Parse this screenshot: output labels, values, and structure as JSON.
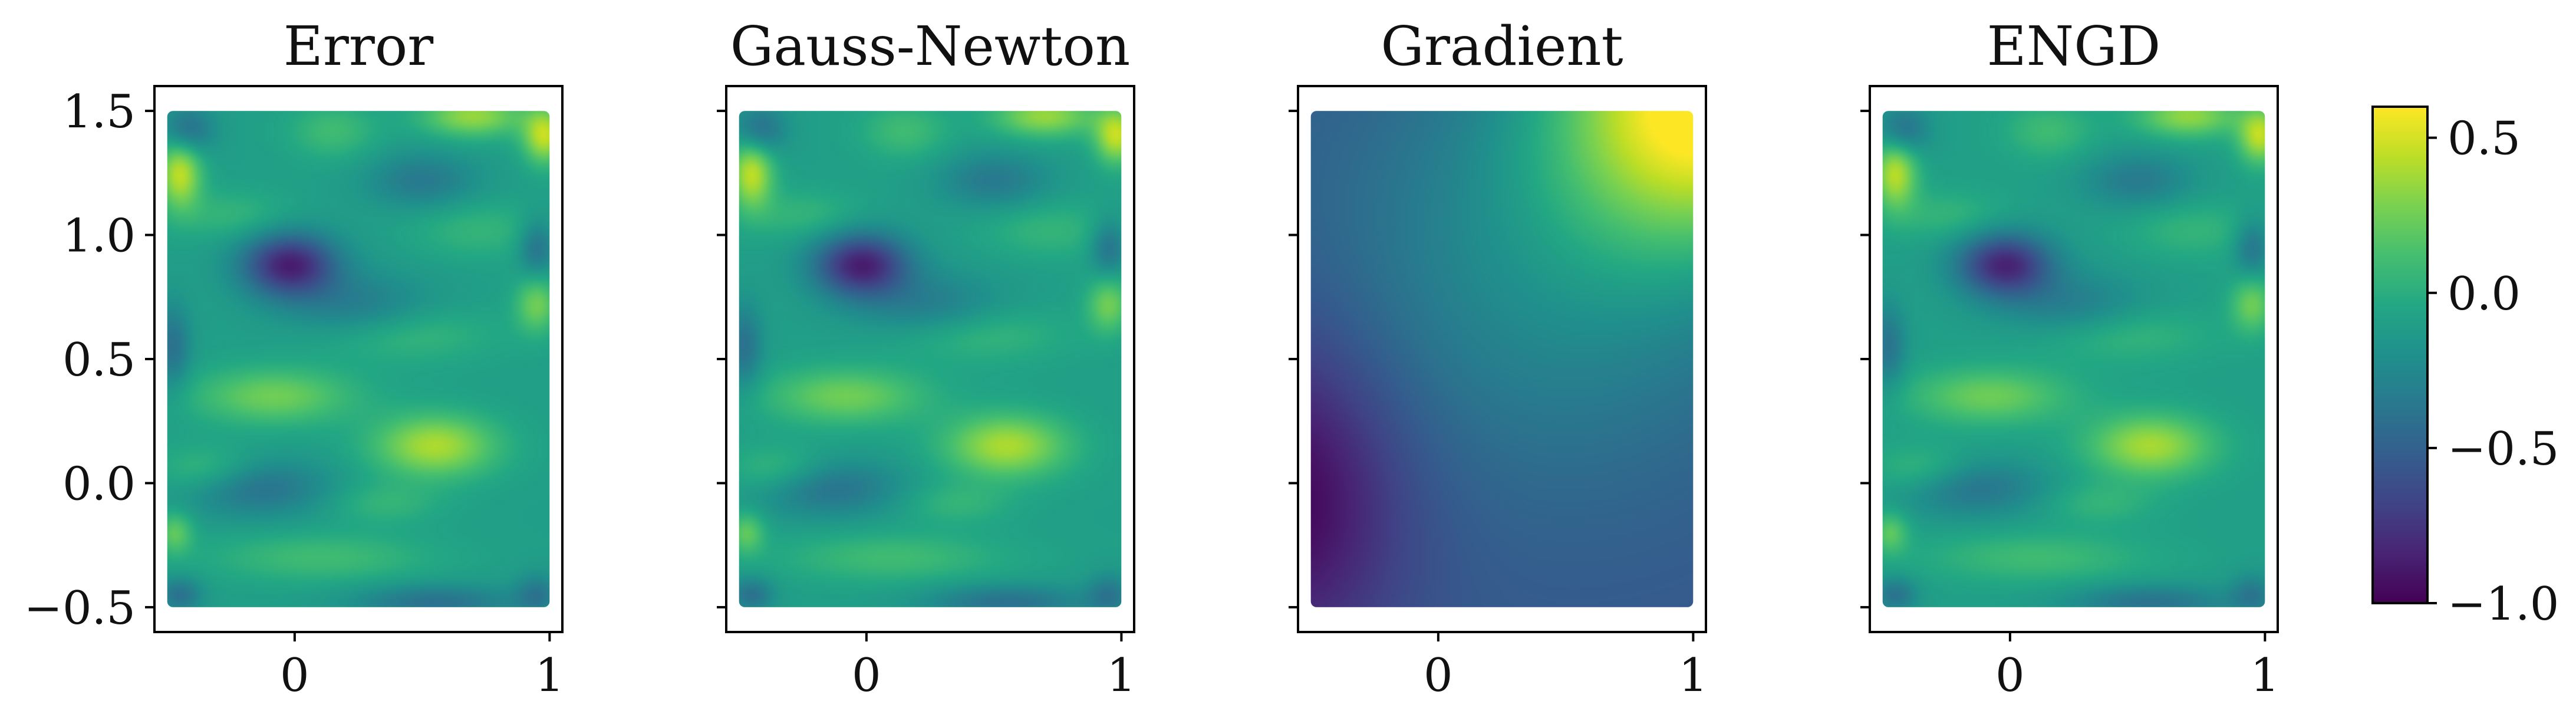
{
  "chart_data": {
    "type": "heatmap",
    "xlim": [
      -0.55,
      1.05
    ],
    "ylim": [
      -0.6,
      1.6
    ],
    "domain_x": [
      -0.5,
      1.0
    ],
    "domain_y": [
      -0.5,
      1.5
    ],
    "x_ticks": [
      {
        "value": 0,
        "label": "0"
      },
      {
        "value": 1,
        "label": "1"
      }
    ],
    "y_ticks": [
      {
        "value": 1.5,
        "label": "1.5"
      },
      {
        "value": 1.0,
        "label": "1.0"
      },
      {
        "value": 0.5,
        "label": "0.5"
      },
      {
        "value": 0.0,
        "label": "0.0"
      },
      {
        "value": -0.5,
        "label": "−0.5"
      }
    ],
    "colorbar": {
      "colormap": "viridis",
      "range": [
        -1.0,
        0.6
      ],
      "ticks": [
        {
          "value": 0.5,
          "label": "0.5"
        },
        {
          "value": 0.0,
          "label": "0.0"
        },
        {
          "value": -0.5,
          "label": "−0.5"
        },
        {
          "value": -1.0,
          "label": "−1.0"
        }
      ]
    },
    "panels": [
      {
        "title": "Error",
        "field": "error",
        "show_y_labels": true
      },
      {
        "title": "Gauss-Newton",
        "field": "gauss_newton",
        "show_y_labels": false
      },
      {
        "title": "Gradient",
        "field": "gradient",
        "show_y_labels": false
      },
      {
        "title": "ENGD",
        "field": "engd",
        "show_y_labels": false
      }
    ],
    "fields": {
      "error": {
        "base": -0.1,
        "features": [
          {
            "x": -0.02,
            "y": 0.88,
            "sx": 0.13,
            "sy": 0.09,
            "a": -0.75
          },
          {
            "x": 0.25,
            "y": 0.7,
            "sx": 0.2,
            "sy": 0.1,
            "a": -0.25
          },
          {
            "x": -0.45,
            "y": 1.25,
            "sx": 0.06,
            "sy": 0.1,
            "a": 0.55
          },
          {
            "x": -0.42,
            "y": 1.42,
            "sx": 0.07,
            "sy": 0.07,
            "a": -0.35
          },
          {
            "x": 0.15,
            "y": 1.42,
            "sx": 0.12,
            "sy": 0.08,
            "a": 0.2
          },
          {
            "x": 0.7,
            "y": 1.48,
            "sx": 0.14,
            "sy": 0.06,
            "a": 0.45
          },
          {
            "x": 0.98,
            "y": 1.4,
            "sx": 0.06,
            "sy": 0.08,
            "a": 0.55
          },
          {
            "x": 0.5,
            "y": 1.22,
            "sx": 0.15,
            "sy": 0.08,
            "a": -0.25
          },
          {
            "x": -0.25,
            "y": 1.08,
            "sx": 0.16,
            "sy": 0.07,
            "a": 0.15
          },
          {
            "x": 0.72,
            "y": 1.02,
            "sx": 0.18,
            "sy": 0.08,
            "a": 0.15
          },
          {
            "x": 0.95,
            "y": 0.72,
            "sx": 0.06,
            "sy": 0.08,
            "a": 0.35
          },
          {
            "x": 0.95,
            "y": 0.95,
            "sx": 0.05,
            "sy": 0.08,
            "a": -0.3
          },
          {
            "x": -0.08,
            "y": 0.35,
            "sx": 0.22,
            "sy": 0.08,
            "a": 0.35
          },
          {
            "x": 0.4,
            "y": 0.6,
            "sx": 0.25,
            "sy": 0.08,
            "a": 0.2
          },
          {
            "x": 0.55,
            "y": 0.15,
            "sx": 0.17,
            "sy": 0.09,
            "a": 0.5
          },
          {
            "x": -0.35,
            "y": 0.05,
            "sx": 0.14,
            "sy": 0.07,
            "a": 0.2
          },
          {
            "x": -0.15,
            "y": -0.02,
            "sx": 0.2,
            "sy": 0.08,
            "a": -0.3
          },
          {
            "x": 0.35,
            "y": -0.08,
            "sx": 0.15,
            "sy": 0.06,
            "a": 0.15
          },
          {
            "x": 0.1,
            "y": -0.3,
            "sx": 0.3,
            "sy": 0.07,
            "a": 0.2
          },
          {
            "x": -0.47,
            "y": -0.2,
            "sx": 0.05,
            "sy": 0.06,
            "a": 0.3
          },
          {
            "x": -0.45,
            "y": -0.45,
            "sx": 0.06,
            "sy": 0.05,
            "a": -0.3
          },
          {
            "x": 0.55,
            "y": -0.48,
            "sx": 0.22,
            "sy": 0.05,
            "a": -0.3
          },
          {
            "x": 0.95,
            "y": -0.45,
            "sx": 0.06,
            "sy": 0.06,
            "a": -0.25
          },
          {
            "x": -0.48,
            "y": 0.55,
            "sx": 0.05,
            "sy": 0.12,
            "a": -0.3
          }
        ]
      },
      "gauss_newton": {
        "ref": "error",
        "scale": 1.0
      },
      "engd": {
        "ref": "error",
        "scale": 0.97
      },
      "gradient": {
        "base": -0.55,
        "features": [
          {
            "x": -0.6,
            "y": -0.05,
            "sx": 0.32,
            "sy": 0.45,
            "a": -0.45
          },
          {
            "x": 1.05,
            "y": 1.55,
            "sx": 0.42,
            "sy": 0.42,
            "a": 1.15
          },
          {
            "x": 0.45,
            "y": 0.9,
            "sx": 0.6,
            "sy": 0.6,
            "a": 0.32
          }
        ]
      }
    }
  }
}
